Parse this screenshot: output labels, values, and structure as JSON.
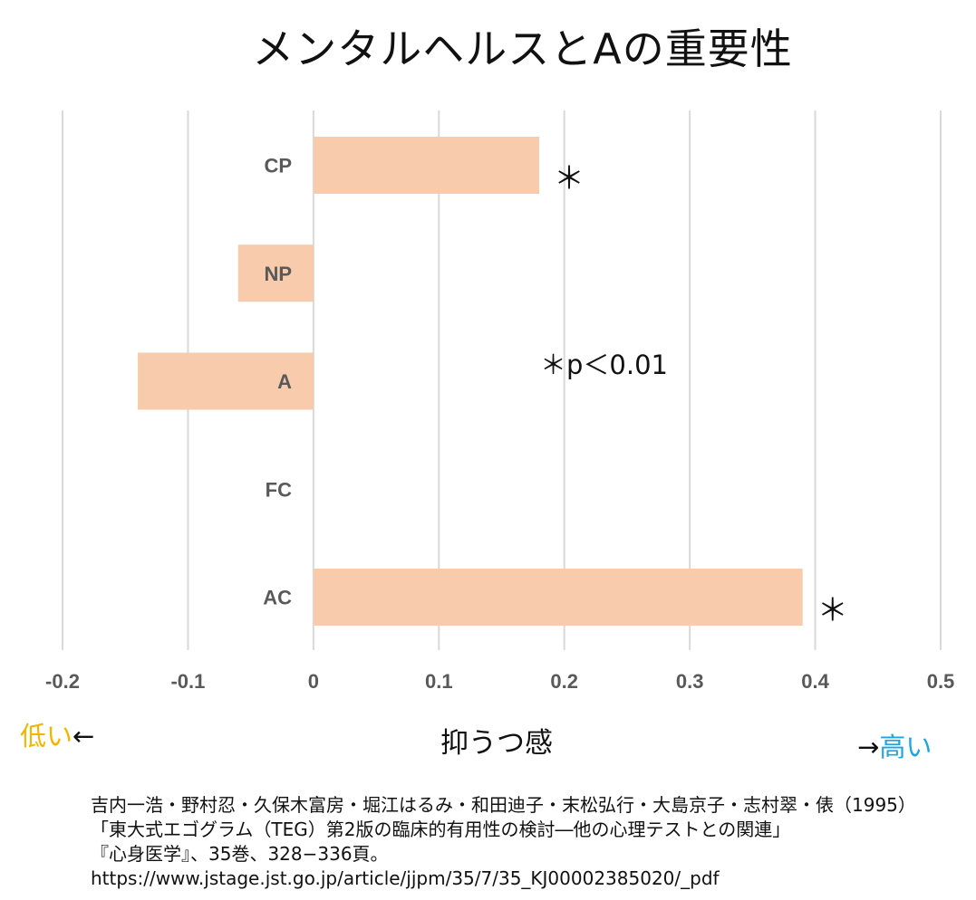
{
  "chart_data": {
    "type": "bar",
    "orientation": "horizontal",
    "title": "メンタルヘルスとAの重要性",
    "categories": [
      "CP",
      "NP",
      "A",
      "FC",
      "AC"
    ],
    "values": [
      0.18,
      -0.06,
      -0.14,
      0.0,
      0.39
    ],
    "significant": [
      true,
      false,
      false,
      false,
      true
    ],
    "significance_marker": "＊",
    "xlabel": "抑うつ感",
    "xlim": [
      -0.2,
      0.5
    ],
    "x_ticks": [
      "-0.2",
      "-0.1",
      "0",
      "0.1",
      "0.2",
      "0.3",
      "0.4",
      "0.5"
    ],
    "grid": true,
    "bar_color": "#f7cbab",
    "annotation": "＊p＜0.01",
    "low_label": "低い",
    "low_arrow": "←",
    "high_label": "高い",
    "high_arrow": "→",
    "low_color": "#f5b400",
    "high_color": "#1ba6e0"
  },
  "citation": [
    "吉内一浩・野村忍・久保木富房・堀江はるみ・和田迪子・末松弘行・大島京子・志村翠・俵（1995）",
    "「東大式エゴグラム（TEG）第2版の臨床的有用性の検討―他の心理テストとの関連」",
    "『心身医学』、35巻、328−336頁。",
    "https://www.jstage.jst.go.jp/article/jjpm/35/7/35_KJ00002385020/_pdf"
  ]
}
